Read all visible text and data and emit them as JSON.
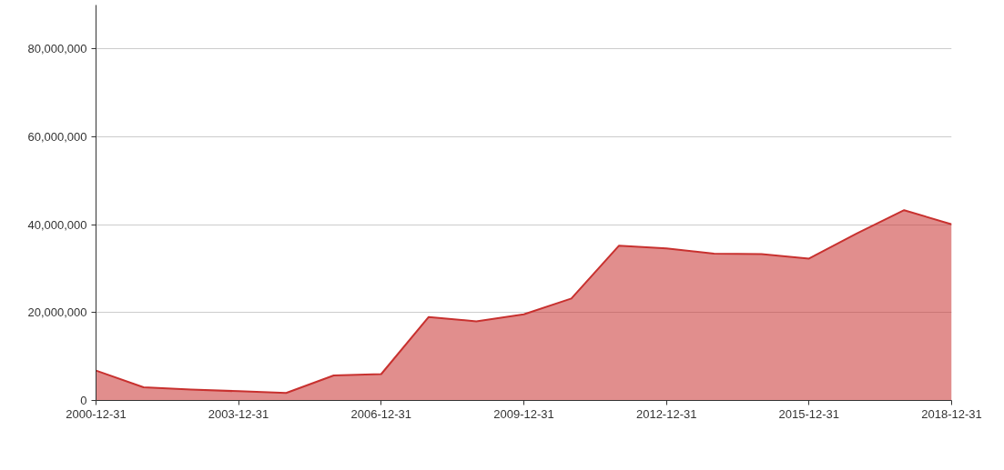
{
  "chart_data": {
    "type": "area",
    "x": [
      "2000-12-31",
      "2001-12-31",
      "2002-12-31",
      "2003-12-31",
      "2004-12-31",
      "2005-12-31",
      "2006-12-31",
      "2007-12-31",
      "2008-12-31",
      "2009-12-31",
      "2010-12-31",
      "2011-12-31",
      "2012-12-31",
      "2013-12-31",
      "2014-12-31",
      "2015-12-31",
      "2016-12-31",
      "2017-12-31",
      "2018-12-31"
    ],
    "series": [
      {
        "color": "#c8312f",
        "values": [
          6800000,
          3000000,
          2500000,
          2100000,
          1700000,
          5700000,
          6000000,
          19000000,
          18000000,
          19600000,
          23200000,
          35200000,
          34600000,
          33400000,
          33300000,
          32300000,
          38000000,
          43300000,
          40100000
        ]
      }
    ],
    "xlim": [
      "2000-12-31",
      "2018-12-31"
    ],
    "xticks": [
      "2000-12-31",
      "2003-12-31",
      "2006-12-31",
      "2009-12-31",
      "2012-12-31",
      "2015-12-31",
      "2018-12-31"
    ],
    "ylim": [
      0,
      90000000
    ],
    "yticks": [
      {
        "value": 0,
        "label": "0"
      },
      {
        "value": 20000000,
        "label": "20,000,000"
      },
      {
        "value": 40000000,
        "label": "40,000,000"
      },
      {
        "value": 60000000,
        "label": "60,000,000"
      },
      {
        "value": 80000000,
        "label": "80,000,000"
      }
    ],
    "grid": "y"
  }
}
